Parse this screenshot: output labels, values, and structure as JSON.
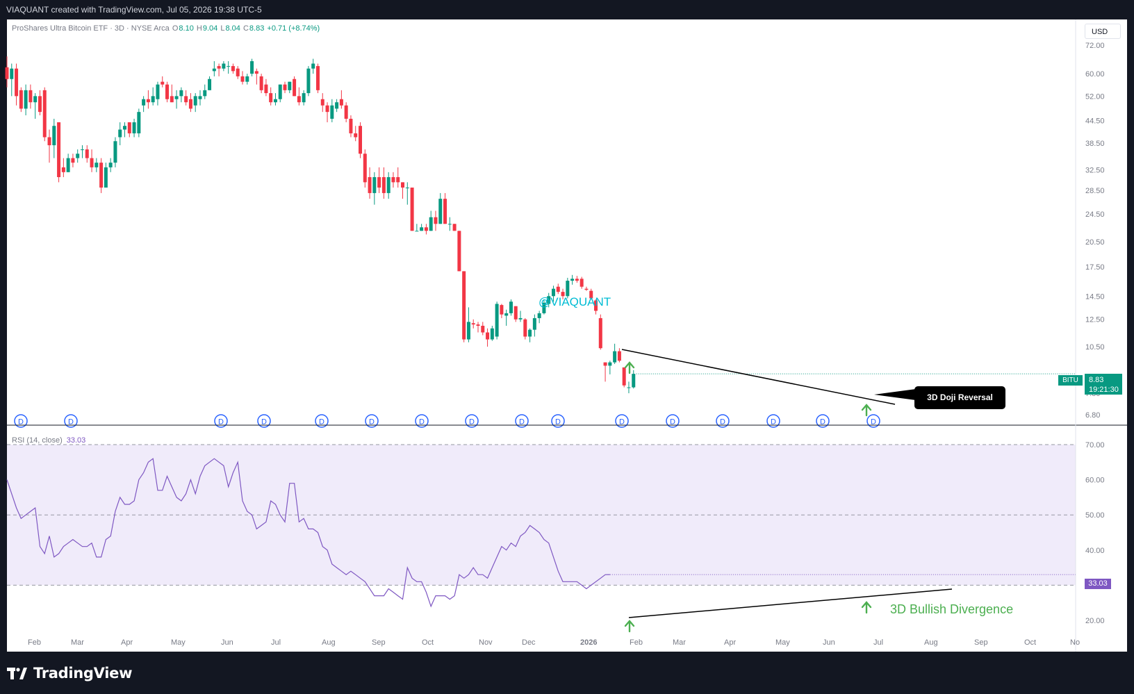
{
  "header": {
    "created_by": "VIAQUANT created with TradingView.com, Jul 05, 2026 19:38 UTC-5"
  },
  "legend": {
    "title": "ProShares Ultra Bitcoin ETF · 3D · NYSE Arca",
    "o_label": "O",
    "o_value": "8.10",
    "h_label": "H",
    "h_value": "9.04",
    "l_label": "L",
    "l_value": "8.04",
    "c_label": "C",
    "c_value": "8.83",
    "change": "+0.71 (+8.74%)"
  },
  "currency_button": "USD",
  "price_tag": {
    "ticker": "BITU",
    "price": "8.83",
    "countdown": "19:21:30"
  },
  "rsi_legend": {
    "label": "RSI (14, close)",
    "value": "33.03"
  },
  "rsi_tag": "33.03",
  "annotations": {
    "watermark": "@VIAQUANT",
    "doji_callout": "3D Doji Reversal",
    "divergence_label": "3D Bullish Divergence",
    "dividend_marker": "D"
  },
  "footer": {
    "brand": "TradingView"
  },
  "colors": {
    "up": "#089981",
    "down": "#f23645",
    "rsi_line": "#7e57c2",
    "rsi_band": "#f0ebfa",
    "watermark": "#00bcd4",
    "arrow": "#4caf50",
    "dividend": "#2962ff"
  },
  "chart_data": [
    {
      "type": "candlestick",
      "title": "ProShares Ultra Bitcoin ETF · 3D · NYSE Arca",
      "scale": "log",
      "y_ticks": [
        "72.00",
        "60.00",
        "52.00",
        "44.50",
        "38.50",
        "32.50",
        "28.50",
        "24.50",
        "20.50",
        "17.50",
        "14.50",
        "12.50",
        "10.50",
        "7.80",
        "6.80"
      ],
      "x_ticks": [
        "Feb",
        "Mar",
        "Apr",
        "May",
        "Jun",
        "Jul",
        "Aug",
        "Sep",
        "Oct",
        "Nov",
        "Dec",
        "2026",
        "Feb",
        "Mar",
        "Apr",
        "May",
        "Jun",
        "Jul",
        "Aug",
        "Sep",
        "Oct",
        "No"
      ],
      "candles": [
        {
          "o": 62.5,
          "h": 67,
          "l": 55,
          "c": 58
        },
        {
          "o": 58,
          "h": 64,
          "l": 52,
          "c": 62
        },
        {
          "o": 62,
          "h": 64,
          "l": 49,
          "c": 52
        },
        {
          "o": 54,
          "h": 55,
          "l": 47,
          "c": 48
        },
        {
          "o": 48,
          "h": 56,
          "l": 46,
          "c": 54
        },
        {
          "o": 54,
          "h": 56,
          "l": 48,
          "c": 50
        },
        {
          "o": 50,
          "h": 53,
          "l": 45,
          "c": 52
        },
        {
          "o": 52,
          "h": 54,
          "l": 46,
          "c": 47
        },
        {
          "o": 54,
          "h": 55,
          "l": 39,
          "c": 40
        },
        {
          "o": 40,
          "h": 42,
          "l": 34,
          "c": 38
        },
        {
          "o": 38,
          "h": 45,
          "l": 35,
          "c": 43
        },
        {
          "o": 44,
          "h": 44,
          "l": 30,
          "c": 31
        },
        {
          "o": 33,
          "h": 35,
          "l": 31,
          "c": 32
        },
        {
          "o": 32,
          "h": 36,
          "l": 32,
          "c": 35
        },
        {
          "o": 35,
          "h": 36,
          "l": 33,
          "c": 34
        },
        {
          "o": 35,
          "h": 37,
          "l": 34,
          "c": 36
        },
        {
          "o": 37,
          "h": 38,
          "l": 35,
          "c": 37
        },
        {
          "o": 37,
          "h": 38,
          "l": 34,
          "c": 35
        },
        {
          "o": 35,
          "h": 37,
          "l": 32,
          "c": 33
        },
        {
          "o": 33,
          "h": 35,
          "l": 32,
          "c": 34
        },
        {
          "o": 34,
          "h": 35,
          "l": 28,
          "c": 29
        },
        {
          "o": 29,
          "h": 34,
          "l": 29,
          "c": 33
        },
        {
          "o": 33,
          "h": 35,
          "l": 32,
          "c": 34
        },
        {
          "o": 34,
          "h": 40,
          "l": 33,
          "c": 39
        },
        {
          "o": 40,
          "h": 44,
          "l": 38,
          "c": 42
        },
        {
          "o": 42,
          "h": 44,
          "l": 40,
          "c": 43
        },
        {
          "o": 44,
          "h": 44,
          "l": 40,
          "c": 41
        },
        {
          "o": 41,
          "h": 45,
          "l": 40,
          "c": 44
        },
        {
          "o": 41,
          "h": 48,
          "l": 40,
          "c": 47
        },
        {
          "o": 49,
          "h": 52,
          "l": 47,
          "c": 51
        },
        {
          "o": 51,
          "h": 54,
          "l": 48,
          "c": 50
        },
        {
          "o": 50,
          "h": 55,
          "l": 49,
          "c": 52
        },
        {
          "o": 51,
          "h": 57,
          "l": 49,
          "c": 56
        },
        {
          "o": 57,
          "h": 59,
          "l": 55,
          "c": 56
        },
        {
          "o": 56,
          "h": 57,
          "l": 50,
          "c": 51
        },
        {
          "o": 52,
          "h": 56,
          "l": 50,
          "c": 50
        },
        {
          "o": 51,
          "h": 54,
          "l": 48,
          "c": 52
        },
        {
          "o": 52,
          "h": 55,
          "l": 50,
          "c": 54
        },
        {
          "o": 52,
          "h": 54,
          "l": 49,
          "c": 50
        },
        {
          "o": 51,
          "h": 53,
          "l": 47,
          "c": 48
        },
        {
          "o": 49,
          "h": 53,
          "l": 47,
          "c": 52
        },
        {
          "o": 51,
          "h": 54,
          "l": 49,
          "c": 52
        },
        {
          "o": 52,
          "h": 56,
          "l": 51,
          "c": 54
        },
        {
          "o": 54,
          "h": 59,
          "l": 54,
          "c": 58
        },
        {
          "o": 61,
          "h": 65,
          "l": 59,
          "c": 62
        },
        {
          "o": 63,
          "h": 64,
          "l": 59,
          "c": 62
        },
        {
          "o": 62,
          "h": 65,
          "l": 61,
          "c": 64
        },
        {
          "o": 63,
          "h": 65,
          "l": 60,
          "c": 63
        },
        {
          "o": 63,
          "h": 64,
          "l": 60,
          "c": 61
        },
        {
          "o": 62,
          "h": 63,
          "l": 58,
          "c": 59
        },
        {
          "o": 59,
          "h": 61,
          "l": 56,
          "c": 57
        },
        {
          "o": 57,
          "h": 60,
          "l": 56,
          "c": 59
        },
        {
          "o": 60,
          "h": 66,
          "l": 59,
          "c": 65
        },
        {
          "o": 61,
          "h": 62,
          "l": 56,
          "c": 60
        },
        {
          "o": 59,
          "h": 60,
          "l": 53,
          "c": 54
        },
        {
          "o": 56,
          "h": 58,
          "l": 52,
          "c": 53
        },
        {
          "o": 53,
          "h": 55,
          "l": 49,
          "c": 50
        },
        {
          "o": 50,
          "h": 53,
          "l": 49,
          "c": 51
        },
        {
          "o": 51,
          "h": 56,
          "l": 50,
          "c": 56
        },
        {
          "o": 56,
          "h": 57,
          "l": 53,
          "c": 54
        },
        {
          "o": 54,
          "h": 57,
          "l": 53,
          "c": 57
        },
        {
          "o": 58,
          "h": 59,
          "l": 52,
          "c": 52
        },
        {
          "o": 52,
          "h": 55,
          "l": 49,
          "c": 50
        },
        {
          "o": 50,
          "h": 54,
          "l": 49,
          "c": 53
        },
        {
          "o": 53,
          "h": 63,
          "l": 52,
          "c": 62
        },
        {
          "o": 62,
          "h": 66,
          "l": 60,
          "c": 64
        },
        {
          "o": 63,
          "h": 64,
          "l": 53,
          "c": 54
        },
        {
          "o": 51,
          "h": 53,
          "l": 47,
          "c": 49
        },
        {
          "o": 49,
          "h": 50,
          "l": 44,
          "c": 47
        },
        {
          "o": 45,
          "h": 51,
          "l": 44,
          "c": 49
        },
        {
          "o": 48,
          "h": 51,
          "l": 47,
          "c": 50
        },
        {
          "o": 51,
          "h": 54,
          "l": 48,
          "c": 49
        },
        {
          "o": 49,
          "h": 50,
          "l": 44,
          "c": 45
        },
        {
          "o": 45,
          "h": 46,
          "l": 40,
          "c": 41
        },
        {
          "o": 41,
          "h": 43,
          "l": 39,
          "c": 40
        },
        {
          "o": 43,
          "h": 44,
          "l": 35,
          "c": 36
        },
        {
          "o": 36,
          "h": 37,
          "l": 29,
          "c": 30
        },
        {
          "o": 31,
          "h": 33,
          "l": 27,
          "c": 28
        },
        {
          "o": 28,
          "h": 32,
          "l": 26,
          "c": 31
        },
        {
          "o": 31,
          "h": 33,
          "l": 28,
          "c": 29
        },
        {
          "o": 31,
          "h": 33,
          "l": 27,
          "c": 28
        },
        {
          "o": 28,
          "h": 32,
          "l": 27,
          "c": 31
        },
        {
          "o": 31,
          "h": 32,
          "l": 29,
          "c": 30
        },
        {
          "o": 31,
          "h": 33,
          "l": 29,
          "c": 30
        },
        {
          "o": 30,
          "h": 30,
          "l": 27,
          "c": 29
        },
        {
          "o": 29,
          "h": 30,
          "l": 26,
          "c": 29
        },
        {
          "o": 29,
          "h": 29,
          "l": 22,
          "c": 22
        },
        {
          "o": 22,
          "h": 23,
          "l": 22,
          "c": 22
        },
        {
          "o": 22,
          "h": 23,
          "l": 22,
          "c": 22.5
        },
        {
          "o": 22.5,
          "h": 23,
          "l": 21.5,
          "c": 22
        },
        {
          "o": 22,
          "h": 25,
          "l": 22,
          "c": 24
        },
        {
          "o": 24,
          "h": 25,
          "l": 22,
          "c": 23
        },
        {
          "o": 23,
          "h": 28,
          "l": 23,
          "c": 27
        },
        {
          "o": 27,
          "h": 28,
          "l": 23,
          "c": 23
        },
        {
          "o": 23,
          "h": 24,
          "l": 22,
          "c": 23
        },
        {
          "o": 23,
          "h": 23,
          "l": 22,
          "c": 22
        },
        {
          "o": 22,
          "h": 22,
          "l": 17,
          "c": 17
        },
        {
          "o": 17,
          "h": 17,
          "l": 10.8,
          "c": 11
        },
        {
          "o": 11,
          "h": 13.5,
          "l": 10.8,
          "c": 12.3
        },
        {
          "o": 12.2,
          "h": 12.5,
          "l": 11.8,
          "c": 12.1
        },
        {
          "o": 12.1,
          "h": 12.3,
          "l": 11.5,
          "c": 12
        },
        {
          "o": 12,
          "h": 12.3,
          "l": 11.3,
          "c": 11.5
        },
        {
          "o": 11.5,
          "h": 11.8,
          "l": 10.5,
          "c": 11
        },
        {
          "o": 11,
          "h": 12,
          "l": 10.9,
          "c": 11.8
        },
        {
          "o": 11.2,
          "h": 14,
          "l": 11,
          "c": 13.8
        },
        {
          "o": 13.7,
          "h": 13.8,
          "l": 12.6,
          "c": 12.9
        },
        {
          "o": 12.8,
          "h": 13.3,
          "l": 12,
          "c": 13
        },
        {
          "o": 13,
          "h": 14.2,
          "l": 12.8,
          "c": 14
        },
        {
          "o": 13.6,
          "h": 13.6,
          "l": 12.3,
          "c": 12.5
        },
        {
          "o": 12.5,
          "h": 13.2,
          "l": 12.3,
          "c": 12.6
        },
        {
          "o": 12.5,
          "h": 12.6,
          "l": 11,
          "c": 11.2
        },
        {
          "o": 11.2,
          "h": 11.8,
          "l": 10.8,
          "c": 11.7
        },
        {
          "o": 11.7,
          "h": 12.9,
          "l": 11.2,
          "c": 12.6
        },
        {
          "o": 12.6,
          "h": 13.2,
          "l": 12.2,
          "c": 13
        },
        {
          "o": 13,
          "h": 14.2,
          "l": 12.9,
          "c": 13.9
        },
        {
          "o": 13.8,
          "h": 14.8,
          "l": 13.5,
          "c": 14.5
        },
        {
          "o": 14.5,
          "h": 15.5,
          "l": 14,
          "c": 15.2
        },
        {
          "o": 15.4,
          "h": 15.7,
          "l": 14.7,
          "c": 14.9
        },
        {
          "o": 14.9,
          "h": 15.2,
          "l": 14.2,
          "c": 14.5
        },
        {
          "o": 14.5,
          "h": 16.3,
          "l": 14.3,
          "c": 16
        },
        {
          "o": 16,
          "h": 16.6,
          "l": 15.6,
          "c": 16.2
        },
        {
          "o": 16.2,
          "h": 16.5,
          "l": 15.8,
          "c": 16
        },
        {
          "o": 16.2,
          "h": 16.4,
          "l": 15.2,
          "c": 15.4
        },
        {
          "o": 15.2,
          "h": 15.4,
          "l": 15,
          "c": 15.1
        },
        {
          "o": 15,
          "h": 15.2,
          "l": 14.2,
          "c": 14.3
        },
        {
          "o": 14.1,
          "h": 14.2,
          "l": 12.9,
          "c": 13.2
        },
        {
          "o": 12.6,
          "h": 12.9,
          "l": 10.3,
          "c": 10.4
        },
        {
          "o": 9.5,
          "h": 9.5,
          "l": 8.4,
          "c": 9.3
        },
        {
          "o": 9.3,
          "h": 9.6,
          "l": 8.8,
          "c": 9.5
        },
        {
          "o": 9.5,
          "h": 10.7,
          "l": 9.4,
          "c": 10.2
        },
        {
          "o": 10.2,
          "h": 10.4,
          "l": 9.5,
          "c": 9.6
        },
        {
          "o": 9.2,
          "h": 9.2,
          "l": 8.1,
          "c": 8.2
        },
        {
          "o": 8.1,
          "h": 8.4,
          "l": 7.8,
          "c": 8.1
        },
        {
          "o": 8.1,
          "h": 9.04,
          "l": 8.04,
          "c": 8.83
        }
      ],
      "last_price": 8.83
    },
    {
      "type": "line",
      "title": "RSI (14, close)",
      "y_ticks": [
        "70.00",
        "60.00",
        "50.00",
        "40.00",
        "30.00",
        "20.00"
      ],
      "bands": [
        30,
        50,
        70
      ],
      "y": [
        60,
        56,
        52,
        49,
        50,
        51,
        52,
        41,
        39,
        44,
        38,
        39,
        41,
        42,
        43,
        42,
        41,
        41,
        42,
        38,
        38,
        43,
        44,
        51,
        55,
        53,
        53,
        54,
        60,
        62,
        65,
        66,
        57,
        57,
        61,
        58,
        55,
        54,
        56,
        60,
        56,
        61,
        64,
        65,
        66,
        65,
        64,
        58,
        62,
        65,
        54,
        51,
        50,
        46,
        47,
        48,
        54,
        53,
        50,
        48,
        59,
        59,
        48,
        49,
        46,
        46,
        45,
        41,
        40,
        36,
        35,
        34,
        33,
        34,
        33,
        32,
        31,
        29,
        27,
        27,
        27,
        29,
        28,
        27,
        26,
        35,
        32,
        31,
        31,
        28,
        24,
        27,
        27,
        27,
        26,
        27,
        33,
        32,
        33,
        35,
        33,
        33,
        32,
        35,
        38,
        41,
        40,
        42,
        41,
        44,
        45,
        47,
        46,
        45,
        43,
        42,
        38,
        34,
        31,
        31,
        31,
        31,
        30,
        29,
        30,
        31,
        32,
        33,
        33.03
      ],
      "last_value": 33.03
    }
  ]
}
